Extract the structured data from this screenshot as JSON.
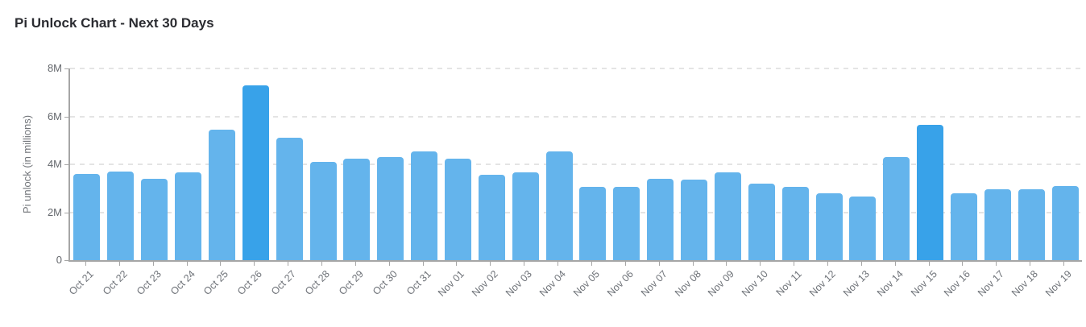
{
  "header": {
    "title": "Pi Unlock Chart - Next 30 Days"
  },
  "chart_data": {
    "type": "bar",
    "title": "Pi Unlock Chart - Next 30 Days",
    "xlabel": "",
    "ylabel": "Pi unlock (in millions)",
    "values_unit": "millions",
    "ylim": [
      0,
      8
    ],
    "grid": true,
    "legend": false,
    "yticks": [
      {
        "v": 0,
        "label": "0"
      },
      {
        "v": 2,
        "label": "2M"
      },
      {
        "v": 4,
        "label": "4M"
      },
      {
        "v": 6,
        "label": "6M"
      },
      {
        "v": 8,
        "label": "8M"
      }
    ],
    "categories": [
      "Oct 21",
      "Oct 22",
      "Oct 23",
      "Oct 24",
      "Oct 25",
      "Oct 26",
      "Oct 27",
      "Oct 28",
      "Oct 29",
      "Oct 30",
      "Oct 31",
      "Nov 01",
      "Nov 02",
      "Nov 03",
      "Nov 04",
      "Nov 05",
      "Nov 06",
      "Nov 07",
      "Nov 08",
      "Nov 09",
      "Nov 10",
      "Nov 11",
      "Nov 12",
      "Nov 13",
      "Nov 14",
      "Nov 15",
      "Nov 16",
      "Nov 17",
      "Nov 18",
      "Nov 19"
    ],
    "values": [
      3.6,
      3.7,
      3.4,
      3.65,
      5.45,
      7.3,
      5.1,
      4.1,
      4.25,
      4.3,
      4.55,
      4.25,
      3.55,
      3.65,
      4.55,
      3.05,
      3.05,
      3.4,
      3.35,
      3.65,
      3.2,
      3.05,
      2.8,
      2.65,
      4.3,
      5.65,
      2.8,
      2.95,
      2.95,
      3.1
    ],
    "highlighted_categories": [
      "Oct 26",
      "Nov 15"
    ],
    "colors": {
      "bar": "#64b4ec",
      "bar_highlight": "#38a2e9",
      "grid": "#e4e4e4",
      "axis": "#a6a6a6",
      "tick_label": "#65686d",
      "axis_title": "#72757a",
      "title": "#2b2c31",
      "background": "#ffffff"
    }
  }
}
